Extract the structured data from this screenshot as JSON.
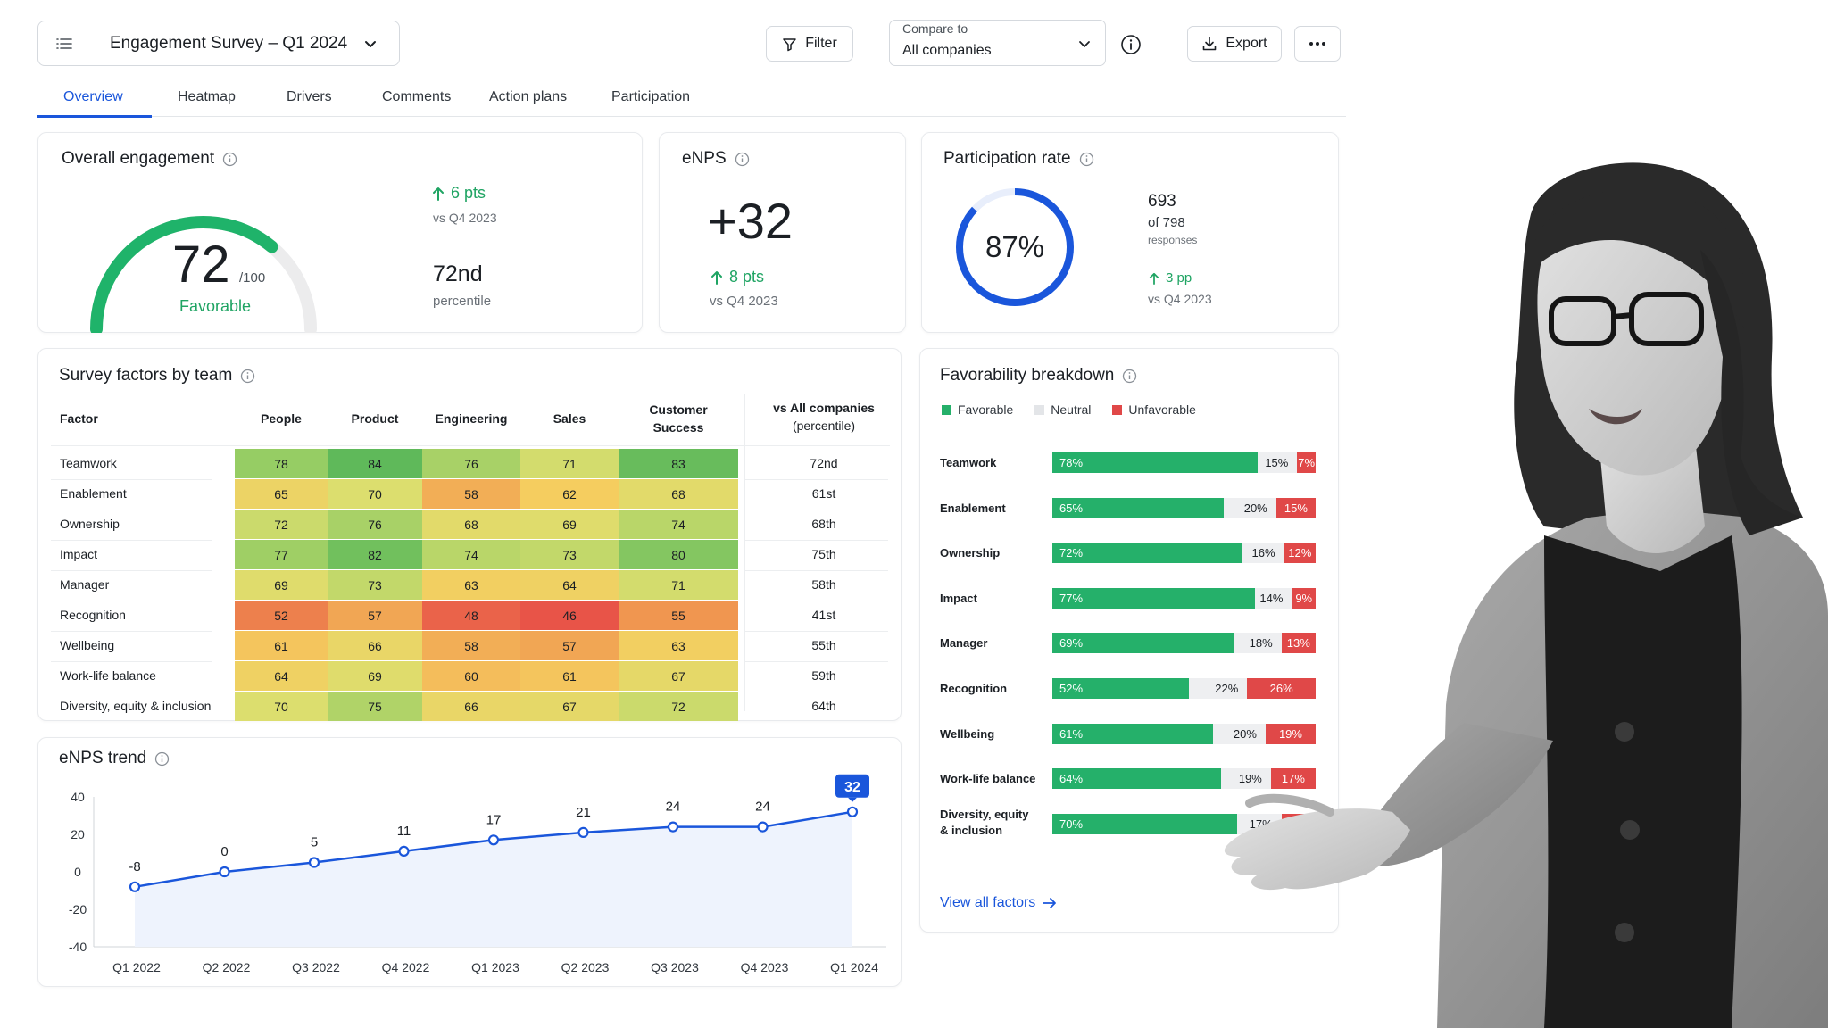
{
  "header": {
    "survey_title": "Engagement Survey – Q1 2024",
    "filter_label": "Filter",
    "compare_label": "Compare to",
    "compare_value": "All companies",
    "export_label": "Export"
  },
  "tabs": [
    {
      "label": "Overview"
    },
    {
      "label": "Heatmap"
    },
    {
      "label": "Drivers"
    },
    {
      "label": "Comments"
    },
    {
      "label": "Action plans"
    },
    {
      "label": "Participation"
    }
  ],
  "engagement": {
    "title": "Overall engagement",
    "score": "72",
    "score_suffix": "/100",
    "status": "Favorable",
    "gauge_value": 72,
    "gauge_max": 100,
    "delta": "6 pts",
    "delta_sub": "vs Q4 2023",
    "percentile": "72nd",
    "percentile_sub": "percentile"
  },
  "enps": {
    "title": "eNPS",
    "value": "+32",
    "delta": "8 pts",
    "delta_sub": "vs Q4 2023"
  },
  "participation": {
    "title": "Participation rate",
    "rate_label": "87%",
    "rate_value": 87,
    "responses": "693",
    "of_total": "of 798",
    "responses_label": "responses",
    "delta": "3 pp",
    "delta_sub": "vs Q4 2023"
  },
  "heatmap": {
    "title": "Survey factors by team",
    "factor_header": "Factor",
    "columns": [
      "People",
      "Product",
      "Engineering",
      "Sales",
      "Customer\nSuccess"
    ],
    "percentile_header": "vs All companies",
    "percentile_subheader": "(percentile)",
    "rows": [
      {
        "factor": "Teamwork",
        "values": [
          78,
          84,
          76,
          71,
          83
        ],
        "percentile": "72nd"
      },
      {
        "factor": "Enablement",
        "values": [
          65,
          70,
          58,
          62,
          68
        ],
        "percentile": "61st"
      },
      {
        "factor": "Ownership",
        "values": [
          72,
          76,
          68,
          69,
          74
        ],
        "percentile": "68th"
      },
      {
        "factor": "Impact",
        "values": [
          77,
          82,
          74,
          73,
          80
        ],
        "percentile": "75th"
      },
      {
        "factor": "Manager",
        "values": [
          69,
          73,
          63,
          64,
          71
        ],
        "percentile": "58th"
      },
      {
        "factor": "Recognition",
        "values": [
          52,
          57,
          48,
          46,
          55
        ],
        "percentile": "41st"
      },
      {
        "factor": "Wellbeing",
        "values": [
          61,
          66,
          58,
          57,
          63
        ],
        "percentile": "55th"
      },
      {
        "factor": "Work-life balance",
        "values": [
          64,
          69,
          60,
          61,
          67
        ],
        "percentile": "59th"
      },
      {
        "factor": "Diversity, equity & inclusion",
        "values": [
          70,
          75,
          66,
          67,
          72
        ],
        "percentile": "64th"
      }
    ]
  },
  "trend": {
    "title": "eNPS trend"
  },
  "chart_data": {
    "type": "line",
    "x": [
      "Q1 2022",
      "Q2 2022",
      "Q3 2022",
      "Q4 2022",
      "Q1 2023",
      "Q2 2023",
      "Q3 2023",
      "Q4 2023",
      "Q1 2024"
    ],
    "values": [
      -8,
      0,
      5,
      11,
      17,
      21,
      24,
      24,
      32
    ],
    "data_labels": [
      "-8",
      "0",
      "5",
      "11",
      "17",
      "21",
      "24",
      "24",
      "32"
    ],
    "ylim": [
      -40,
      40
    ],
    "yticks": [
      "40",
      "20",
      "0",
      "-20",
      "-40"
    ],
    "highlight_last": true,
    "color": "#1a56db"
  },
  "favorability": {
    "title": "Favorability breakdown",
    "legend": [
      "Favorable",
      "Neutral",
      "Unfavorable"
    ],
    "colors": {
      "favorable": "#25b06a",
      "neutral": "#eeeff1",
      "unfavorable": "#e04848"
    },
    "rows": [
      {
        "factor": "Teamwork",
        "favorable": 78,
        "neutral": 15,
        "unfavorable": 7,
        "f_label": "78%",
        "n_label": "15%",
        "u_label": "7%"
      },
      {
        "factor": "Enablement",
        "favorable": 65,
        "neutral": 20,
        "unfavorable": 15,
        "f_label": "65%",
        "n_label": "20%",
        "u_label": "15%"
      },
      {
        "factor": "Ownership",
        "favorable": 72,
        "neutral": 16,
        "unfavorable": 12,
        "f_label": "72%",
        "n_label": "16%",
        "u_label": "12%"
      },
      {
        "factor": "Impact",
        "favorable": 77,
        "neutral": 14,
        "unfavorable": 9,
        "f_label": "77%",
        "n_label": "14%",
        "u_label": "9%"
      },
      {
        "factor": "Manager",
        "favorable": 69,
        "neutral": 18,
        "unfavorable": 13,
        "f_label": "69%",
        "n_label": "18%",
        "u_label": "13%"
      },
      {
        "factor": "Recognition",
        "favorable": 52,
        "neutral": 22,
        "unfavorable": 26,
        "f_label": "52%",
        "n_label": "22%",
        "u_label": "26%"
      },
      {
        "factor": "Wellbeing",
        "favorable": 61,
        "neutral": 20,
        "unfavorable": 19,
        "f_label": "61%",
        "n_label": "20%",
        "u_label": "19%"
      },
      {
        "factor": "Work-life balance",
        "favorable": 64,
        "neutral": 19,
        "unfavorable": 17,
        "f_label": "64%",
        "n_label": "19%",
        "u_label": "17%"
      },
      {
        "factor": "Diversity, equity\n& inclusion",
        "favorable": 70,
        "neutral": 17,
        "unfavorable": 13,
        "f_label": "70%",
        "n_label": "17%",
        "u_label": "13%"
      }
    ],
    "view_all": "View all factors"
  }
}
